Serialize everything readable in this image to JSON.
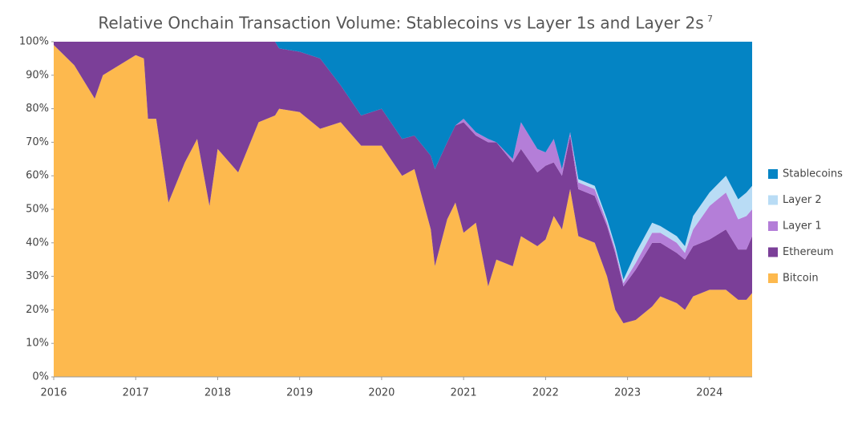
{
  "chart_data": {
    "type": "stacked_area",
    "title": "Relative Onchain Transaction Volume: Stablecoins vs Layer 1s and Layer 2s",
    "title_note": "7",
    "x": [
      2016.0,
      2016.25,
      2016.5,
      2016.6,
      2017.0,
      2017.1,
      2017.15,
      2017.25,
      2017.4,
      2017.6,
      2017.75,
      2017.9,
      2018.0,
      2018.25,
      2018.5,
      2018.7,
      2018.75,
      2019.0,
      2019.25,
      2019.5,
      2019.75,
      2020.0,
      2020.25,
      2020.4,
      2020.6,
      2020.65,
      2020.8,
      2020.9,
      2021.0,
      2021.15,
      2021.3,
      2021.4,
      2021.6,
      2021.7,
      2021.9,
      2022.0,
      2022.1,
      2022.2,
      2022.3,
      2022.4,
      2022.6,
      2022.75,
      2022.85,
      2022.95,
      2023.1,
      2023.3,
      2023.4,
      2023.6,
      2023.7,
      2023.8,
      2024.0,
      2024.2,
      2024.35,
      2024.45,
      2024.52
    ],
    "series": [
      {
        "name": "Bitcoin",
        "color": "#fdb94e",
        "values": [
          99,
          93,
          83,
          90,
          96,
          95,
          77,
          77,
          52,
          64,
          71,
          51,
          68,
          61,
          76,
          78,
          80,
          79,
          74,
          76,
          69,
          69,
          60,
          62,
          44,
          33,
          47,
          52,
          43,
          46,
          27,
          35,
          33,
          42,
          39,
          41,
          48,
          44,
          56,
          42,
          40,
          30,
          20,
          16,
          17,
          21,
          24,
          22,
          20,
          24,
          26,
          26,
          23,
          23,
          25
        ]
      },
      {
        "name": "Ethereum",
        "color": "#7b3f98",
        "values": [
          1,
          7,
          17,
          10,
          4,
          5,
          23,
          23,
          48,
          36,
          29,
          49,
          32,
          39,
          24,
          22,
          18,
          18,
          21,
          11,
          9,
          11,
          11,
          10,
          22,
          29,
          23,
          23,
          33,
          26,
          43,
          35,
          31,
          26,
          22,
          22,
          16,
          16,
          16,
          14,
          14,
          15,
          17,
          11,
          15,
          19,
          16,
          15,
          15,
          15,
          15,
          18,
          15,
          15,
          17
        ]
      },
      {
        "name": "Layer 1",
        "color": "#b47ed8",
        "values": [
          0,
          0,
          0,
          0,
          0,
          0,
          0,
          0,
          0,
          0,
          0,
          0,
          0,
          0,
          0,
          0,
          0,
          0,
          0,
          0,
          0,
          0,
          0,
          0,
          0,
          0,
          0,
          0,
          1,
          1,
          1,
          0,
          1,
          8,
          7,
          4,
          7,
          2,
          1,
          2,
          2,
          1,
          1,
          1,
          2,
          3,
          3,
          3,
          2,
          5,
          10,
          11,
          9,
          10,
          8
        ]
      },
      {
        "name": "Layer 2",
        "color": "#b9dcf5",
        "values": [
          0,
          0,
          0,
          0,
          0,
          0,
          0,
          0,
          0,
          0,
          0,
          0,
          0,
          0,
          0,
          0,
          0,
          0,
          0,
          0,
          0,
          0,
          0,
          0,
          0,
          0,
          0,
          0,
          0,
          0,
          0,
          0,
          0,
          0,
          0,
          0,
          0,
          0,
          0,
          1,
          1,
          1,
          1,
          1,
          3,
          3,
          2,
          2,
          2,
          4,
          4,
          5,
          6,
          7,
          7
        ]
      },
      {
        "name": "Stablecoins",
        "color": "#0484c4",
        "values": [
          0,
          0,
          0,
          0,
          0,
          0,
          0,
          0,
          0,
          0,
          0,
          0,
          0,
          0,
          0,
          0,
          2,
          3,
          5,
          13,
          22,
          20,
          29,
          28,
          34,
          38,
          30,
          25,
          23,
          27,
          29,
          30,
          35,
          24,
          32,
          33,
          29,
          38,
          27,
          41,
          43,
          53,
          61,
          71,
          63,
          54,
          55,
          58,
          61,
          52,
          45,
          40,
          47,
          45,
          43
        ]
      }
    ],
    "xlim": [
      2016,
      2024.52
    ],
    "xticks": [
      2016,
      2017,
      2018,
      2019,
      2020,
      2021,
      2022,
      2023,
      2024
    ],
    "ylim": [
      0,
      100
    ],
    "yticks": [
      {
        "value": 0,
        "label": "0%"
      },
      {
        "value": 10,
        "label": "10%"
      },
      {
        "value": 20,
        "label": "20%"
      },
      {
        "value": 30,
        "label": "30%"
      },
      {
        "value": 40,
        "label": "40%"
      },
      {
        "value": 50,
        "label": "50%"
      },
      {
        "value": 60,
        "label": "60%"
      },
      {
        "value": 70,
        "label": "70%"
      },
      {
        "value": 80,
        "label": "80%"
      },
      {
        "value": 90,
        "label": "90%"
      },
      {
        "value": 100,
        "label": "100%"
      }
    ],
    "legend": "right"
  }
}
